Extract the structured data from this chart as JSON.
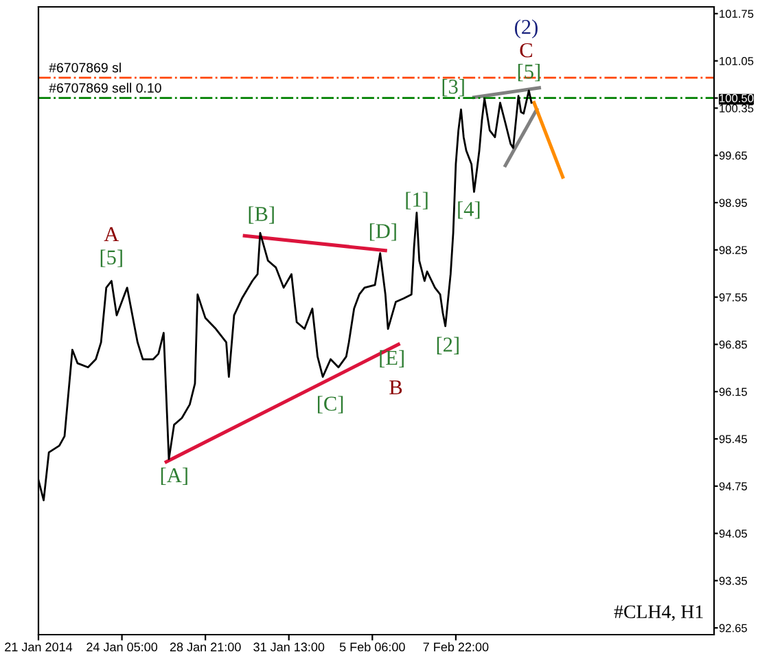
{
  "chart_data": {
    "type": "line",
    "ylim": [
      92.55,
      101.85
    ],
    "categories": [
      "21 Jan 2014",
      null,
      null,
      null,
      null,
      null,
      null,
      null,
      null,
      null,
      null,
      null,
      null,
      null,
      null,
      null,
      null,
      null,
      null,
      null,
      null,
      null,
      null,
      null,
      null,
      null,
      null,
      null,
      null,
      null,
      null,
      null,
      "24 Jan 05:00",
      null,
      null,
      null,
      null,
      null,
      null,
      null,
      null,
      null,
      null,
      null,
      null,
      null,
      null,
      null,
      null,
      null,
      null,
      null,
      null,
      null,
      null,
      null,
      null,
      null,
      null,
      null,
      null,
      null,
      null,
      null,
      "28 Jan 21:00",
      null,
      null,
      null,
      null,
      null,
      null,
      null,
      null,
      null,
      null,
      null,
      null,
      null,
      null,
      null,
      null,
      null,
      null,
      null,
      null,
      null,
      null,
      null,
      null,
      null,
      null,
      null,
      null,
      null,
      null,
      null,
      "31 Jan 13:00",
      null,
      null,
      null,
      null,
      null,
      null,
      null,
      null,
      null,
      null,
      null,
      null,
      null,
      null,
      null,
      null,
      null,
      null,
      null,
      null,
      null,
      null,
      null,
      null,
      null,
      null,
      null,
      null,
      null,
      null,
      null,
      "5 Feb 06:00",
      null,
      null,
      null,
      null,
      null,
      null,
      null,
      null,
      null,
      null,
      null,
      null,
      null,
      null,
      null,
      null,
      null,
      null,
      null,
      null,
      null,
      null,
      null,
      null,
      null,
      null,
      null,
      null,
      null,
      null,
      null,
      "7 Feb 22:00",
      null,
      null,
      null,
      null,
      null,
      null,
      null,
      null,
      null,
      null,
      null,
      null,
      null,
      null,
      null,
      null,
      null,
      null,
      null,
      null,
      null,
      null,
      null,
      null,
      null,
      null,
      null,
      null,
      null,
      null,
      null,
      null,
      null,
      null,
      null,
      null,
      null,
      null,
      null,
      null,
      null,
      null,
      null,
      null,
      null,
      null,
      null,
      null,
      null,
      null,
      null,
      null,
      null,
      null,
      null,
      null,
      null,
      null,
      null,
      null,
      null,
      null,
      null,
      null,
      null,
      null,
      null,
      null,
      null,
      null,
      null,
      null,
      null,
      null,
      null,
      null,
      null,
      null,
      null,
      null,
      null,
      null,
      null,
      null,
      null,
      null,
      null,
      null,
      null,
      null,
      null,
      null,
      null,
      null,
      null,
      null,
      null,
      null,
      null
    ],
    "yticks": [
      92.65,
      93.35,
      94.05,
      94.75,
      95.45,
      96.15,
      96.85,
      97.55,
      98.25,
      98.95,
      99.65,
      100.35,
      {
        "value": 100.5,
        "label": "100.50"
      },
      101.05,
      101.75
    ],
    "grid": false,
    "legend": false,
    "marker": "none",
    "line_style": "solid",
    "series": [
      {
        "color": "#000000",
        "values": [
          94.84,
          null,
          94.54,
          null,
          95.25,
          null,
          null,
          null,
          95.35,
          null,
          95.49,
          null,
          null,
          96.77,
          null,
          96.57,
          null,
          null,
          null,
          96.51,
          null,
          null,
          96.63,
          null,
          96.88,
          null,
          97.69,
          null,
          97.79,
          null,
          97.28,
          null,
          null,
          97.59,
          97.69,
          null,
          null,
          97.08,
          96.88,
          null,
          96.63,
          null,
          null,
          null,
          96.63,
          null,
          96.71,
          null,
          97.02,
          null,
          95.15,
          null,
          95.66,
          null,
          null,
          95.76,
          null,
          null,
          95.96,
          null,
          96.27,
          97.59,
          null,
          null,
          97.24,
          null,
          null,
          null,
          97.08,
          null,
          null,
          null,
          96.88,
          96.37,
          null,
          97.28,
          null,
          null,
          97.53,
          null,
          null,
          null,
          97.79,
          null,
          97.89,
          98.5,
          null,
          null,
          98.09,
          null,
          null,
          97.99,
          null,
          null,
          97.69,
          null,
          null,
          97.89,
          null,
          97.18,
          null,
          null,
          97.08,
          null,
          null,
          97.38,
          null,
          96.67,
          null,
          96.37,
          null,
          null,
          96.63,
          null,
          null,
          96.51,
          null,
          null,
          96.67,
          96.88,
          null,
          97.38,
          null,
          97.59,
          null,
          97.69,
          null,
          null,
          null,
          97.73,
          null,
          98.2,
          null,
          97.59,
          97.08,
          null,
          null,
          97.48,
          null,
          null,
          97.53,
          null,
          null,
          97.59,
          98.3,
          98.8,
          98.09,
          null,
          97.79,
          97.93,
          null,
          null,
          97.69,
          null,
          97.59,
          97.32,
          97.12,
          null,
          97.89,
          98.5,
          99.52,
          100.02,
          100.33,
          99.92,
          99.72,
          null,
          99.52,
          99.11,
          99.41,
          99.72,
          100.17,
          100.49,
          null,
          100.02,
          null,
          99.92,
          null,
          100.43,
          null,
          100.13,
          null,
          99.82,
          99.76,
          null,
          100.53,
          100.29,
          100.27,
          null,
          100.61,
          100.43,
          null,
          null,
          null,
          null,
          null,
          null,
          null,
          null,
          null,
          null,
          null,
          null,
          null,
          null,
          null,
          null,
          null,
          null,
          null,
          null,
          null,
          null,
          null,
          null,
          null,
          null,
          null,
          null,
          null,
          null,
          null,
          null,
          null,
          null,
          null,
          null,
          null,
          null,
          null,
          null,
          null,
          null,
          null,
          null,
          null,
          null,
          null,
          null,
          null,
          null,
          null,
          null,
          null,
          null,
          null,
          null,
          null,
          null,
          null,
          null,
          null,
          null,
          null,
          null,
          null,
          null,
          null,
          null,
          null,
          null
        ]
      },
      {
        "color": "#dc143c",
        "values": [
          null,
          null,
          null,
          null,
          null,
          null,
          null,
          null,
          null,
          null,
          null,
          null,
          null,
          null,
          null,
          null,
          null,
          null,
          null,
          null,
          null,
          null,
          null,
          null,
          null,
          null,
          null,
          null,
          null,
          null,
          null,
          null,
          null,
          null,
          null,
          null,
          null,
          null,
          null,
          null,
          null,
          null,
          null,
          null,
          null,
          null,
          null,
          null,
          null,
          95.11,
          null,
          null,
          null,
          null,
          null,
          null,
          null,
          null,
          null,
          null,
          null,
          null,
          null,
          null,
          null,
          null,
          null,
          null,
          null,
          null,
          null,
          null,
          null,
          null,
          null,
          null,
          null,
          null,
          null,
          null,
          null,
          null,
          null,
          null,
          null,
          null,
          null,
          null,
          null,
          null,
          null,
          null,
          null,
          null,
          null,
          null,
          null,
          null,
          null,
          null,
          null,
          null,
          null,
          null,
          null,
          null,
          null,
          null,
          null,
          null,
          null,
          null,
          null,
          null,
          null,
          null,
          null,
          null,
          null,
          null,
          null,
          null,
          null,
          null,
          null,
          null,
          null,
          null,
          null,
          null,
          null,
          null,
          null,
          null,
          null,
          null,
          null,
          null,
          96.85,
          null,
          null,
          null,
          null,
          null,
          null,
          null,
          null,
          null,
          null,
          null,
          null,
          null,
          null,
          null,
          null,
          null,
          null,
          null,
          null,
          null,
          null,
          null,
          null,
          null,
          null,
          null,
          null,
          null,
          null,
          null,
          null,
          null,
          null,
          null,
          null,
          null,
          null,
          null,
          null,
          null,
          null,
          null,
          null,
          null,
          null,
          null,
          null,
          null,
          null,
          null,
          null,
          null,
          null,
          null,
          null,
          null,
          null,
          null,
          null,
          null,
          null,
          null,
          null,
          null,
          null,
          null,
          null,
          null,
          null,
          null,
          null,
          null,
          null,
          null,
          null,
          null,
          null,
          null,
          null,
          null,
          null,
          null,
          null,
          null,
          null,
          null,
          null,
          null,
          null,
          null,
          null,
          null,
          null,
          null,
          null,
          null,
          null,
          null,
          null,
          null,
          null,
          null,
          null,
          null,
          null,
          null,
          null,
          null,
          null,
          null,
          null,
          null,
          null,
          null,
          null,
          null,
          null,
          null,
          null,
          null
        ]
      },
      {
        "color": "#dc143c",
        "values": [
          null,
          null,
          null,
          null,
          null,
          null,
          null,
          null,
          null,
          null,
          null,
          null,
          null,
          null,
          null,
          null,
          null,
          null,
          null,
          null,
          null,
          null,
          null,
          null,
          null,
          null,
          null,
          null,
          null,
          null,
          null,
          null,
          null,
          null,
          null,
          null,
          null,
          null,
          null,
          null,
          null,
          null,
          null,
          null,
          null,
          null,
          null,
          null,
          null,
          null,
          null,
          null,
          null,
          null,
          null,
          null,
          null,
          null,
          null,
          null,
          null,
          null,
          null,
          null,
          null,
          null,
          null,
          null,
          null,
          null,
          null,
          null,
          null,
          null,
          null,
          null,
          null,
          null,
          null,
          98.46,
          null,
          null,
          null,
          null,
          null,
          null,
          null,
          null,
          null,
          null,
          null,
          null,
          null,
          null,
          null,
          null,
          null,
          null,
          null,
          null,
          null,
          null,
          null,
          null,
          null,
          null,
          null,
          null,
          null,
          null,
          null,
          null,
          null,
          null,
          null,
          null,
          null,
          null,
          null,
          null,
          null,
          null,
          null,
          null,
          null,
          null,
          null,
          null,
          null,
          null,
          null,
          null,
          null,
          98.24,
          null,
          null,
          null,
          null,
          null,
          null,
          null,
          null,
          null,
          null,
          null,
          null,
          null,
          null,
          null,
          null,
          null,
          null,
          null,
          null,
          null,
          null,
          null,
          null,
          null,
          null,
          null,
          null,
          null,
          null,
          null,
          null,
          null,
          null,
          null,
          null,
          null,
          null,
          null,
          null,
          null,
          null,
          null,
          null,
          null,
          null,
          null,
          null,
          null,
          null,
          null,
          null,
          null,
          null,
          null,
          null,
          null,
          null,
          null,
          null,
          null,
          null,
          null,
          null,
          null,
          null,
          null,
          null,
          null,
          null,
          null,
          null,
          null,
          null,
          null,
          null,
          null,
          null,
          null,
          null,
          null,
          null,
          null,
          null,
          null,
          null,
          null,
          null,
          null,
          null,
          null,
          null,
          null,
          null,
          null,
          null,
          null,
          null,
          null,
          null,
          null,
          null,
          null,
          null,
          null,
          null,
          null,
          null,
          null,
          null,
          null,
          null,
          null,
          null,
          null,
          null,
          null,
          null,
          null,
          null,
          null,
          null,
          null,
          null,
          null,
          null
        ]
      },
      {
        "color": "#808080",
        "values": [
          null,
          null,
          null,
          null,
          null,
          null,
          null,
          null,
          null,
          null,
          null,
          null,
          null,
          null,
          null,
          null,
          null,
          null,
          null,
          null,
          null,
          null,
          null,
          null,
          null,
          null,
          null,
          null,
          null,
          null,
          null,
          null,
          null,
          null,
          null,
          null,
          null,
          null,
          null,
          null,
          null,
          null,
          null,
          null,
          null,
          null,
          null,
          null,
          null,
          null,
          null,
          null,
          null,
          null,
          null,
          null,
          null,
          null,
          null,
          null,
          null,
          null,
          null,
          null,
          null,
          null,
          null,
          null,
          null,
          null,
          null,
          null,
          null,
          null,
          null,
          null,
          null,
          null,
          null,
          null,
          null,
          null,
          null,
          null,
          null,
          null,
          null,
          null,
          null,
          null,
          null,
          null,
          null,
          null,
          null,
          null,
          null,
          null,
          null,
          null,
          null,
          null,
          null,
          null,
          null,
          null,
          null,
          null,
          null,
          null,
          null,
          null,
          null,
          null,
          null,
          null,
          null,
          null,
          null,
          null,
          null,
          null,
          null,
          null,
          null,
          null,
          null,
          null,
          null,
          null,
          null,
          null,
          null,
          null,
          null,
          null,
          null,
          null,
          null,
          null,
          null,
          null,
          null,
          null,
          null,
          null,
          null,
          null,
          null,
          null,
          null,
          null,
          null,
          null,
          null,
          null,
          null,
          null,
          null,
          null,
          null,
          null,
          null,
          null,
          null,
          null,
          null,
          100.51,
          null,
          null,
          null,
          null,
          null,
          null,
          null,
          null,
          null,
          null,
          null,
          null,
          null,
          null,
          null,
          null,
          null,
          null,
          null,
          null,
          null,
          null,
          null,
          null,
          100.65,
          null,
          null,
          null,
          null,
          null,
          null,
          null,
          null,
          null,
          null,
          null,
          null,
          null,
          null,
          null,
          null,
          null,
          null,
          null,
          null,
          null,
          null,
          null,
          null,
          null,
          null,
          null,
          null,
          null,
          null,
          null,
          null,
          null,
          null,
          null,
          null,
          null,
          null,
          null,
          null,
          null,
          null,
          null,
          null,
          null,
          null,
          null,
          null,
          null,
          null,
          null,
          null,
          null,
          null,
          null,
          null,
          null,
          null,
          null,
          null,
          null,
          null,
          null,
          null,
          null,
          null,
          null
        ]
      },
      {
        "color": "#808080",
        "values": [
          null,
          null,
          null,
          null,
          null,
          null,
          null,
          null,
          null,
          null,
          null,
          null,
          null,
          null,
          null,
          null,
          null,
          null,
          null,
          null,
          null,
          null,
          null,
          null,
          null,
          null,
          null,
          null,
          null,
          null,
          null,
          null,
          null,
          null,
          null,
          null,
          null,
          null,
          null,
          null,
          null,
          null,
          null,
          null,
          null,
          null,
          null,
          null,
          null,
          null,
          null,
          null,
          null,
          null,
          null,
          null,
          null,
          null,
          null,
          null,
          null,
          null,
          null,
          null,
          null,
          null,
          null,
          null,
          null,
          null,
          null,
          null,
          null,
          null,
          null,
          null,
          null,
          null,
          null,
          null,
          null,
          null,
          null,
          null,
          null,
          null,
          null,
          null,
          null,
          null,
          null,
          null,
          null,
          null,
          null,
          null,
          null,
          null,
          null,
          null,
          null,
          null,
          null,
          null,
          null,
          null,
          null,
          null,
          null,
          null,
          null,
          null,
          null,
          null,
          null,
          null,
          null,
          null,
          null,
          null,
          null,
          null,
          null,
          null,
          null,
          null,
          null,
          null,
          null,
          null,
          null,
          null,
          null,
          null,
          null,
          null,
          null,
          null,
          null,
          null,
          null,
          null,
          null,
          null,
          null,
          null,
          null,
          null,
          null,
          null,
          null,
          null,
          null,
          null,
          null,
          null,
          null,
          null,
          null,
          null,
          null,
          null,
          null,
          null,
          null,
          null,
          null,
          null,
          null,
          null,
          null,
          null,
          null,
          null,
          null,
          null,
          null,
          null,
          null,
          99.5,
          null,
          null,
          null,
          null,
          null,
          null,
          null,
          null,
          null,
          null,
          null,
          100.33,
          null,
          null,
          null,
          null,
          null,
          null,
          null,
          null,
          null,
          null,
          null,
          null,
          null,
          null,
          null,
          null,
          null,
          null,
          null,
          null,
          null,
          null,
          null,
          null,
          null,
          null,
          null,
          null,
          null,
          null,
          null,
          null,
          null,
          null,
          null,
          null,
          null,
          null,
          null,
          null,
          null,
          null,
          null,
          null,
          null,
          null,
          null,
          null,
          null,
          null,
          null,
          null,
          null,
          null,
          null,
          null,
          null,
          null,
          null,
          null,
          null,
          null,
          null,
          null,
          null,
          null,
          null,
          null
        ]
      },
      {
        "color": "#ff8c00",
        "values": [
          null,
          null,
          null,
          null,
          null,
          null,
          null,
          null,
          null,
          null,
          null,
          null,
          null,
          null,
          null,
          null,
          null,
          null,
          null,
          null,
          null,
          null,
          null,
          null,
          null,
          null,
          null,
          null,
          null,
          null,
          null,
          null,
          null,
          null,
          null,
          null,
          null,
          null,
          null,
          null,
          null,
          null,
          null,
          null,
          null,
          null,
          null,
          null,
          null,
          null,
          null,
          null,
          null,
          null,
          null,
          null,
          null,
          null,
          null,
          null,
          null,
          null,
          null,
          null,
          null,
          null,
          null,
          null,
          null,
          null,
          null,
          null,
          null,
          null,
          null,
          null,
          null,
          null,
          null,
          null,
          null,
          null,
          null,
          null,
          null,
          null,
          null,
          null,
          null,
          null,
          null,
          null,
          null,
          null,
          null,
          null,
          null,
          null,
          null,
          null,
          null,
          null,
          null,
          null,
          null,
          null,
          null,
          null,
          null,
          null,
          null,
          null,
          null,
          null,
          null,
          null,
          null,
          null,
          null,
          null,
          null,
          null,
          null,
          null,
          null,
          null,
          null,
          null,
          null,
          null,
          null,
          null,
          null,
          null,
          null,
          null,
          null,
          null,
          null,
          null,
          null,
          null,
          null,
          null,
          null,
          null,
          null,
          null,
          null,
          null,
          null,
          null,
          null,
          null,
          null,
          null,
          null,
          null,
          null,
          null,
          null,
          null,
          null,
          null,
          null,
          null,
          null,
          null,
          null,
          null,
          null,
          null,
          null,
          null,
          null,
          null,
          null,
          null,
          null,
          null,
          null,
          null,
          null,
          null,
          null,
          null,
          null,
          null,
          null,
          null,
          100.43,
          null,
          null,
          null,
          null,
          null,
          null,
          null,
          null,
          null,
          null,
          99.33,
          null,
          null,
          null,
          null,
          null,
          null,
          null,
          null,
          null,
          null,
          null,
          null,
          null,
          null,
          null,
          null,
          null,
          null,
          null,
          null,
          null,
          null,
          null,
          null,
          null,
          null,
          null,
          null,
          null,
          null,
          null,
          null,
          null,
          null,
          null,
          null,
          null,
          null,
          null,
          null,
          null,
          null,
          null,
          null,
          null,
          null,
          null,
          null,
          null,
          null,
          null,
          null,
          null,
          null,
          null,
          null,
          null,
          null
        ]
      }
    ],
    "ref_lines": [
      {
        "axis": "y",
        "value": 100.8,
        "label": "#6707869 sl",
        "color": "#ff4500",
        "line_style": "dashdot"
      },
      {
        "axis": "y",
        "value": 100.5,
        "label": "#6707869 sell 0.10",
        "color": "#008000",
        "line_style": "dashdot"
      }
    ],
    "annotations": [
      "A",
      "[5]",
      {
        "text": "[B]",
        "y": 98.5
      },
      "[D]",
      "[1]",
      "[A]",
      "[C]",
      {
        "text": "[E]",
        "y": 96.85
      },
      "B",
      "[2]",
      "[3]",
      "[4]",
      {
        "text": "[5]",
        "y": 100.61
      },
      "C",
      "(2)",
      "#CLH4, H1"
    ]
  }
}
